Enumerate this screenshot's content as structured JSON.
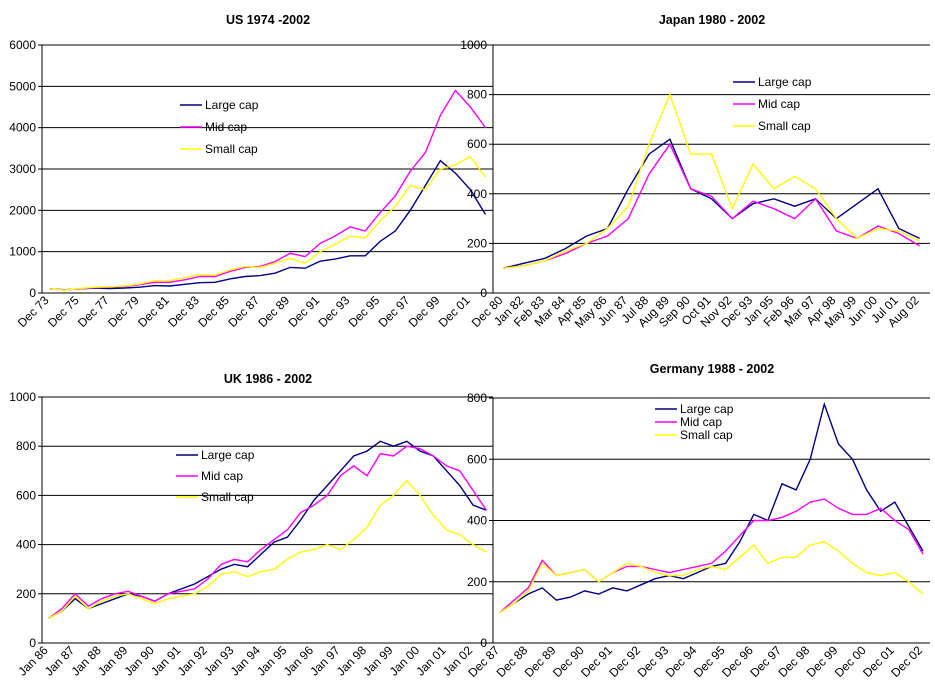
{
  "chart_data": [
    {
      "type": "line",
      "title": "US 1974  -2002",
      "categories": [
        "Dec 73",
        null,
        "Dec 75",
        null,
        "Dec 77",
        null,
        "Dec 79",
        null,
        "Dec 81",
        null,
        "Dec 83",
        null,
        "Dec 85",
        null,
        "Dec 87",
        null,
        "Dec 89",
        null,
        "Dec 91",
        null,
        "Dec 93",
        null,
        "Dec 95",
        null,
        "Dec 97",
        null,
        "Dec 99",
        null,
        "Dec 01",
        null
      ],
      "ylim": [
        0,
        6000
      ],
      "yticks": [
        0,
        1000,
        2000,
        3000,
        4000,
        5000,
        6000
      ],
      "grid": true,
      "series": [
        {
          "name": "Large cap",
          "color": "#000080",
          "values": [
            100,
            80,
            100,
            120,
            110,
            120,
            140,
            180,
            170,
            210,
            250,
            260,
            340,
            400,
            420,
            480,
            620,
            600,
            770,
            820,
            900,
            900,
            1250,
            1500,
            2000,
            2600,
            3200,
            2900,
            2500,
            1900
          ]
        },
        {
          "name": "Mid cap",
          "color": "#ff00ff",
          "values": [
            100,
            75,
            100,
            130,
            140,
            160,
            200,
            260,
            260,
            320,
            400,
            400,
            520,
            620,
            640,
            760,
            960,
            880,
            1200,
            1380,
            1600,
            1500,
            1950,
            2350,
            2950,
            3400,
            4300,
            4900,
            4500,
            4000
          ]
        },
        {
          "name": "Small cap",
          "color": "#ffff00",
          "values": [
            100,
            70,
            110,
            140,
            150,
            170,
            220,
            300,
            300,
            370,
            450,
            430,
            560,
            640,
            620,
            720,
            840,
            720,
            1000,
            1180,
            1380,
            1330,
            1750,
            2100,
            2600,
            2500,
            3000,
            3100,
            3300,
            2800
          ]
        }
      ]
    },
    {
      "type": "line",
      "title": "Japan 1980 - 2002",
      "categories": [
        "Dec 80",
        "Jan 82",
        "Feb 83",
        "Mar 84",
        "Apr 85",
        "May 86",
        "Jun 87",
        "Jul 88",
        "Aug 89",
        "Sep 90",
        "Oct 91",
        "Nov 92",
        "Dec 93",
        "Jan 95",
        "Feb 96",
        "Mar 97",
        "Apr 98",
        "May 99",
        "Jun 00",
        "Jul 01",
        "Aug 02"
      ],
      "ylim": [
        0,
        1000
      ],
      "yticks": [
        0,
        200,
        400,
        600,
        800,
        1000
      ],
      "grid": true,
      "series": [
        {
          "name": "Large cap",
          "color": "#000080",
          "values": [
            100,
            120,
            140,
            180,
            230,
            260,
            420,
            560,
            620,
            420,
            380,
            300,
            360,
            380,
            350,
            380,
            300,
            360,
            420,
            260,
            220
          ]
        },
        {
          "name": "Mid cap",
          "color": "#ff00ff",
          "values": [
            100,
            110,
            130,
            160,
            200,
            230,
            300,
            480,
            600,
            420,
            390,
            300,
            370,
            340,
            300,
            380,
            250,
            220,
            270,
            240,
            190
          ]
        },
        {
          "name": "Small cap",
          "color": "#ffff00",
          "values": [
            100,
            110,
            130,
            170,
            200,
            260,
            350,
            600,
            800,
            560,
            560,
            340,
            520,
            420,
            470,
            420,
            300,
            220,
            260,
            250,
            210
          ]
        }
      ]
    },
    {
      "type": "line",
      "title": "UK 1986 - 2002",
      "categories": [
        "Jan 86",
        null,
        "Jan 87",
        null,
        "Jan 88",
        null,
        "Jan 89",
        null,
        "Jan 90",
        null,
        "Jan 91",
        null,
        "Jan 92",
        null,
        "Jan 93",
        null,
        "Jan 94",
        null,
        "Jan 95",
        null,
        "Jan 96",
        null,
        "Jan 97",
        null,
        "Jan 98",
        null,
        "Jan 99",
        null,
        "Jan 00",
        null,
        "Jan 01",
        null,
        "Jan 02",
        null
      ],
      "ylim": [
        0,
        1000
      ],
      "yticks": [
        0,
        200,
        400,
        600,
        800,
        1000
      ],
      "grid": true,
      "series": [
        {
          "name": "Large cap",
          "color": "#000080",
          "values": [
            100,
            130,
            180,
            140,
            160,
            180,
            200,
            190,
            170,
            200,
            220,
            240,
            270,
            300,
            320,
            310,
            360,
            410,
            430,
            500,
            580,
            640,
            700,
            760,
            780,
            820,
            800,
            820,
            780,
            760,
            700,
            640,
            560,
            540
          ]
        },
        {
          "name": "Mid cap",
          "color": "#ff00ff",
          "values": [
            100,
            140,
            200,
            150,
            180,
            200,
            210,
            190,
            170,
            200,
            210,
            220,
            260,
            320,
            340,
            330,
            380,
            420,
            460,
            530,
            560,
            600,
            680,
            720,
            680,
            770,
            760,
            800,
            790,
            760,
            720,
            700,
            620,
            540
          ]
        },
        {
          "name": "Small cap",
          "color": "#ffff00",
          "values": [
            100,
            130,
            190,
            140,
            170,
            190,
            200,
            180,
            160,
            180,
            190,
            200,
            230,
            280,
            290,
            270,
            290,
            300,
            340,
            370,
            380,
            400,
            380,
            420,
            470,
            560,
            600,
            660,
            600,
            520,
            460,
            440,
            400,
            370
          ]
        }
      ]
    },
    {
      "type": "line",
      "title": "Germany 1988 - 2002",
      "categories": [
        "Dec 87",
        null,
        "Dec 88",
        null,
        "Dec 89",
        null,
        "Dec 90",
        null,
        "Dec 91",
        null,
        "Dec 92",
        null,
        "Dec 93",
        null,
        "Dec 94",
        null,
        "Dec 95",
        null,
        "Dec 96",
        null,
        "Dec 97",
        null,
        "Dec 98",
        null,
        "Dec 99",
        null,
        "Dec 00",
        null,
        "Dec 01",
        null,
        "Dec 02"
      ],
      "ylim": [
        0,
        800
      ],
      "yticks": [
        0,
        200,
        400,
        600,
        800
      ],
      "grid": true,
      "series": [
        {
          "name": "Large cap",
          "color": "#000080",
          "values": [
            100,
            130,
            160,
            180,
            140,
            150,
            170,
            160,
            180,
            170,
            190,
            210,
            220,
            210,
            230,
            250,
            260,
            330,
            420,
            400,
            520,
            500,
            600,
            780,
            650,
            600,
            500,
            430,
            460,
            380,
            300
          ]
        },
        {
          "name": "Mid cap",
          "color": "#ff00ff",
          "values": [
            100,
            140,
            180,
            270,
            220,
            230,
            240,
            200,
            230,
            250,
            250,
            240,
            230,
            240,
            250,
            260,
            300,
            350,
            400,
            400,
            410,
            430,
            460,
            470,
            440,
            420,
            420,
            440,
            400,
            370,
            290
          ]
        },
        {
          "name": "Small cap",
          "color": "#ffff00",
          "values": [
            100,
            130,
            170,
            260,
            220,
            230,
            240,
            200,
            230,
            260,
            250,
            230,
            220,
            220,
            240,
            250,
            240,
            280,
            320,
            260,
            280,
            280,
            320,
            330,
            300,
            260,
            230,
            220,
            230,
            200,
            160
          ]
        }
      ]
    }
  ]
}
